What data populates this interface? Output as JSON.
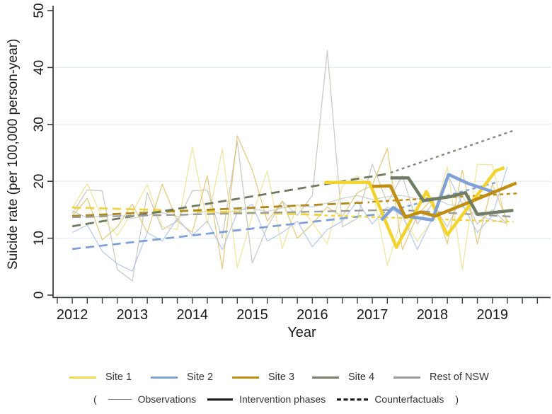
{
  "figure": {
    "ylabel": "Suicide rate (per 100,000 person-year)",
    "xlabel": "Year"
  },
  "legend": {
    "sites": [
      {
        "label": "Site 1",
        "color": "#EFD94C"
      },
      {
        "label": "Site 2",
        "color": "#7FA1D7"
      },
      {
        "label": "Site 3",
        "color": "#C18E12"
      },
      {
        "label": "Site 4",
        "color": "#74806A"
      },
      {
        "label": "Rest of NSW",
        "color": "#9C9FA0"
      }
    ],
    "styles": {
      "open": "(",
      "close": ")",
      "items": [
        {
          "label": "Observations",
          "style": "thin"
        },
        {
          "label": "Intervention phases",
          "style": "thick"
        },
        {
          "label": "Counterfactuals",
          "style": "dashed"
        }
      ]
    }
  },
  "chart_data": {
    "type": "line",
    "title": "",
    "xlabel": "Year",
    "ylabel": "Suicide rate (per 100,000 person-year)",
    "xlim": [
      2011.68,
      2019.97
    ],
    "ylim": [
      0,
      50
    ],
    "xticks": [
      2012,
      2013,
      2014,
      2015,
      2016,
      2017,
      2018,
      2019
    ],
    "yticks": [
      0,
      10,
      20,
      30,
      40,
      50
    ],
    "x_minor_step": 0.25,
    "grid": "horizontal",
    "grid_color": "#e6efef",
    "axis_color": "#3f3f3f",
    "legend_position": "bottom",
    "series": [
      {
        "name": "rest-of-nsw-observations",
        "site": "Rest of NSW",
        "role": "observation",
        "color": "#CDD0D0",
        "width": 1.4,
        "dash": "",
        "opacity": 0.9,
        "points": [
          [
            2012,
            14.8
          ],
          [
            2012.25,
            13.6
          ],
          [
            2012.5,
            13.9
          ],
          [
            2012.75,
            14.2
          ],
          [
            2013,
            13.5
          ],
          [
            2013.25,
            14.0
          ],
          [
            2013.5,
            14.5
          ],
          [
            2013.75,
            13.8
          ],
          [
            2014,
            14.2
          ],
          [
            2014.25,
            14.8
          ],
          [
            2014.5,
            14.3
          ],
          [
            2014.75,
            14.9
          ],
          [
            2015,
            15.2
          ],
          [
            2015.25,
            14.7
          ],
          [
            2015.5,
            15.3
          ],
          [
            2015.75,
            15.8
          ],
          [
            2016,
            15.5
          ],
          [
            2016.25,
            16.2
          ],
          [
            2016.5,
            17.0
          ],
          [
            2016.75,
            17.5
          ],
          [
            2017,
            16.8
          ],
          [
            2017.25,
            17.3
          ],
          [
            2017.5,
            17.5
          ],
          [
            2017.75,
            16.9
          ],
          [
            2018,
            17.2
          ],
          [
            2018.25,
            16.0
          ],
          [
            2018.5,
            15.5
          ],
          [
            2018.75,
            14.0
          ],
          [
            2019,
            13.2
          ],
          [
            2019.25,
            12.6
          ]
        ]
      },
      {
        "name": "site4-observations",
        "site": "Site 4",
        "role": "observation",
        "color": "#C4C6BD",
        "width": 1.3,
        "dash": "",
        "opacity": 0.9,
        "points": [
          [
            2012,
            14.3
          ],
          [
            2012.25,
            18.5
          ],
          [
            2012.5,
            18.3
          ],
          [
            2012.75,
            4.5
          ],
          [
            2013,
            2.5
          ],
          [
            2013.25,
            18.0
          ],
          [
            2013.5,
            11.5
          ],
          [
            2013.75,
            13.0
          ],
          [
            2014,
            18.3
          ],
          [
            2014.25,
            18.5
          ],
          [
            2014.5,
            10.0
          ],
          [
            2014.75,
            27.0
          ],
          [
            2015,
            5.6
          ],
          [
            2015.25,
            12.0
          ],
          [
            2015.5,
            16.5
          ],
          [
            2015.75,
            14.0
          ],
          [
            2016,
            17.5
          ],
          [
            2016.25,
            43.0
          ],
          [
            2016.5,
            12.0
          ],
          [
            2016.75,
            13.5
          ],
          [
            2017,
            23.0
          ],
          [
            2017.25,
            16.2
          ],
          [
            2017.5,
            21.0
          ],
          [
            2017.75,
            12.5
          ],
          [
            2018,
            16.0
          ],
          [
            2018.25,
            12.0
          ],
          [
            2018.5,
            17.5
          ],
          [
            2018.75,
            12.5
          ],
          [
            2019,
            15.0
          ],
          [
            2019.25,
            12.5
          ]
        ]
      },
      {
        "name": "site1-observations",
        "site": "Site 1",
        "role": "observation",
        "color": "#F1E49C",
        "width": 1.3,
        "dash": "",
        "opacity": 0.95,
        "points": [
          [
            2012,
            15.3
          ],
          [
            2012.25,
            19.6
          ],
          [
            2012.5,
            13.5
          ],
          [
            2012.75,
            10.5
          ],
          [
            2013,
            14.5
          ],
          [
            2013.25,
            19.4
          ],
          [
            2013.5,
            12.0
          ],
          [
            2013.75,
            11.5
          ],
          [
            2014,
            26.0
          ],
          [
            2014.25,
            12.5
          ],
          [
            2014.5,
            25.7
          ],
          [
            2014.75,
            4.8
          ],
          [
            2015,
            14.0
          ],
          [
            2015.25,
            21.8
          ],
          [
            2015.5,
            8.2
          ],
          [
            2015.75,
            16.0
          ],
          [
            2016,
            12.8
          ],
          [
            2016.25,
            9.0
          ],
          [
            2016.5,
            19.2
          ],
          [
            2016.75,
            21.0
          ],
          [
            2017,
            18.8
          ],
          [
            2017.25,
            5.2
          ],
          [
            2017.5,
            13.8
          ],
          [
            2017.75,
            9.5
          ],
          [
            2018,
            13.2
          ],
          [
            2018.25,
            22.6
          ],
          [
            2018.5,
            4.5
          ],
          [
            2018.75,
            23.0
          ],
          [
            2019,
            22.9
          ],
          [
            2019.25,
            12.0
          ]
        ]
      },
      {
        "name": "site3-observations",
        "site": "Site 3",
        "role": "observation",
        "color": "#DCBE66",
        "width": 1.3,
        "dash": "",
        "opacity": 0.8,
        "points": [
          [
            2012,
            13.9
          ],
          [
            2012.25,
            17.0
          ],
          [
            2012.5,
            9.7
          ],
          [
            2012.75,
            12.0
          ],
          [
            2013,
            16.0
          ],
          [
            2013.25,
            11.0
          ],
          [
            2013.5,
            19.5
          ],
          [
            2013.75,
            13.0
          ],
          [
            2014,
            11.0
          ],
          [
            2014.25,
            21.0
          ],
          [
            2014.5,
            4.6
          ],
          [
            2014.75,
            28.0
          ],
          [
            2015,
            22.0
          ],
          [
            2015.25,
            13.0
          ],
          [
            2015.5,
            16.5
          ],
          [
            2015.75,
            10.0
          ],
          [
            2016,
            12.5
          ],
          [
            2016.25,
            15.5
          ],
          [
            2016.5,
            13.8
          ],
          [
            2016.75,
            18.0
          ],
          [
            2017,
            19.3
          ],
          [
            2017.25,
            25.8
          ],
          [
            2017.5,
            8.0
          ],
          [
            2017.75,
            14.0
          ],
          [
            2018,
            17.0
          ],
          [
            2018.25,
            9.0
          ],
          [
            2018.5,
            22.0
          ],
          [
            2018.75,
            9.0
          ],
          [
            2019,
            19.5
          ],
          [
            2019.25,
            13.0
          ]
        ]
      },
      {
        "name": "site2-observations",
        "site": "Site 2",
        "role": "observation",
        "color": "#B6C8E8",
        "width": 1.3,
        "dash": "",
        "opacity": 0.95,
        "points": [
          [
            2012,
            11.0
          ],
          [
            2012.25,
            12.3
          ],
          [
            2012.5,
            7.7
          ],
          [
            2012.75,
            5.5
          ],
          [
            2013,
            4.2
          ],
          [
            2013.25,
            11.0
          ],
          [
            2013.5,
            9.5
          ],
          [
            2013.75,
            13.5
          ],
          [
            2014,
            10.5
          ],
          [
            2014.25,
            13.0
          ],
          [
            2014.5,
            8.0
          ],
          [
            2014.75,
            14.5
          ],
          [
            2015,
            16.0
          ],
          [
            2015.25,
            9.5
          ],
          [
            2015.5,
            11.0
          ],
          [
            2015.75,
            13.0
          ],
          [
            2016,
            8.5
          ],
          [
            2016.25,
            11.5
          ],
          [
            2016.5,
            13.0
          ],
          [
            2016.75,
            16.5
          ],
          [
            2017,
            12.5
          ],
          [
            2017.25,
            15.5
          ],
          [
            2017.5,
            14.0
          ],
          [
            2017.75,
            8.0
          ],
          [
            2018,
            13.5
          ],
          [
            2018.25,
            21.2
          ],
          [
            2018.5,
            16.0
          ],
          [
            2018.75,
            11.0
          ],
          [
            2019,
            14.0
          ],
          [
            2019.25,
            22.5
          ]
        ]
      },
      {
        "name": "site1-trend",
        "site": "Site 1",
        "role": "counterfactual",
        "color": "#EDD33F",
        "width": 2.8,
        "dash": "12,7",
        "opacity": 1,
        "points": [
          [
            2012,
            15.4
          ],
          [
            2016.15,
            14.1
          ]
        ]
      },
      {
        "name": "site3-trend",
        "site": "Site 3",
        "role": "counterfactual",
        "color": "#B18A1E",
        "width": 2.8,
        "dash": "12,7",
        "opacity": 1,
        "points": [
          [
            2012,
            13.9
          ],
          [
            2016.95,
            16.3
          ]
        ]
      },
      {
        "name": "site4-trend",
        "site": "Site 4",
        "role": "counterfactual",
        "color": "#6C7A5F",
        "width": 2.8,
        "dash": "12,7",
        "opacity": 1,
        "points": [
          [
            2012,
            12.1
          ],
          [
            2017.25,
            21.3
          ]
        ]
      },
      {
        "name": "site2-trend",
        "site": "Site 2",
        "role": "counterfactual",
        "color": "#7FA1D7",
        "width": 2.8,
        "dash": "12,7",
        "opacity": 1,
        "points": [
          [
            2012,
            8.1
          ],
          [
            2017.1,
            14.2
          ]
        ]
      },
      {
        "name": "rest-of-nsw-trend",
        "site": "Rest of NSW",
        "role": "counterfactual",
        "color": "#9B9D9B",
        "width": 2.4,
        "dash": "12,7",
        "opacity": 1,
        "points": [
          [
            2012,
            13.7
          ],
          [
            2017.4,
            15.0
          ],
          [
            2019.3,
            13.8
          ]
        ]
      },
      {
        "name": "site1-counterfactual",
        "site": "Site 1",
        "role": "counterfactual",
        "color": "#EDD33F",
        "width": 2.4,
        "dash": "5,4.5",
        "opacity": 1,
        "points": [
          [
            2016.2,
            14.0
          ],
          [
            2019.35,
            12.9
          ]
        ]
      },
      {
        "name": "site3-counterfactual",
        "site": "Site 3",
        "role": "counterfactual",
        "color": "#C08F10",
        "width": 2.4,
        "dash": "5,4.5",
        "opacity": 1,
        "points": [
          [
            2017.0,
            16.4
          ],
          [
            2019.45,
            17.9
          ]
        ]
      },
      {
        "name": "site2-counterfactual",
        "site": "Site 2",
        "role": "counterfactual",
        "color": "#7FA1D7",
        "width": 2.4,
        "dash": "5,4.5",
        "opacity": 1,
        "points": [
          [
            2017.15,
            14.4
          ],
          [
            2019.1,
            19.9
          ]
        ]
      },
      {
        "name": "site4-counterfactual",
        "site": "Site 4",
        "role": "counterfactual",
        "color": "#87897F",
        "width": 2.4,
        "dash": "4,4.5",
        "opacity": 1,
        "points": [
          [
            2017.3,
            21.5
          ],
          [
            2019.35,
            28.9
          ]
        ]
      },
      {
        "name": "site1-intervention-phase",
        "site": "Site 1",
        "role": "intervention",
        "color": "#F3D42F",
        "width": 4.5,
        "dash": "",
        "opacity": 1,
        "points": [
          [
            2016.2,
            19.8
          ],
          [
            2016.95,
            19.8
          ],
          [
            2017.4,
            8.4
          ],
          [
            2017.9,
            18.2
          ],
          [
            2018.25,
            10.6
          ],
          [
            2019.05,
            21.8
          ],
          [
            2019.2,
            22.4
          ]
        ]
      },
      {
        "name": "site2-intervention-phase",
        "site": "Site 2",
        "role": "intervention",
        "color": "#7FA1D7",
        "width": 4.5,
        "dash": "",
        "opacity": 1,
        "points": [
          [
            2017.15,
            13.2
          ],
          [
            2017.35,
            15.4
          ],
          [
            2017.55,
            13.9
          ],
          [
            2018.0,
            13.2
          ],
          [
            2018.27,
            21.2
          ],
          [
            2018.6,
            19.6
          ],
          [
            2019.05,
            18.0
          ]
        ]
      },
      {
        "name": "site3-intervention-phase",
        "site": "Site 3",
        "role": "intervention",
        "color": "#C18E12",
        "width": 4.5,
        "dash": "",
        "opacity": 1,
        "points": [
          [
            2017.0,
            19.1
          ],
          [
            2017.3,
            19.2
          ],
          [
            2017.55,
            13.7
          ],
          [
            2017.8,
            14.6
          ],
          [
            2018.05,
            13.9
          ],
          [
            2019.4,
            19.7
          ]
        ]
      },
      {
        "name": "site4-intervention-phase",
        "site": "Site 4",
        "role": "intervention",
        "color": "#6F7D64",
        "width": 4.5,
        "dash": "",
        "opacity": 1,
        "points": [
          [
            2017.3,
            20.6
          ],
          [
            2017.6,
            20.6
          ],
          [
            2017.85,
            16.6
          ],
          [
            2018.3,
            17.3
          ],
          [
            2018.55,
            18.0
          ],
          [
            2018.75,
            14.2
          ],
          [
            2019.35,
            14.9
          ]
        ]
      }
    ]
  }
}
